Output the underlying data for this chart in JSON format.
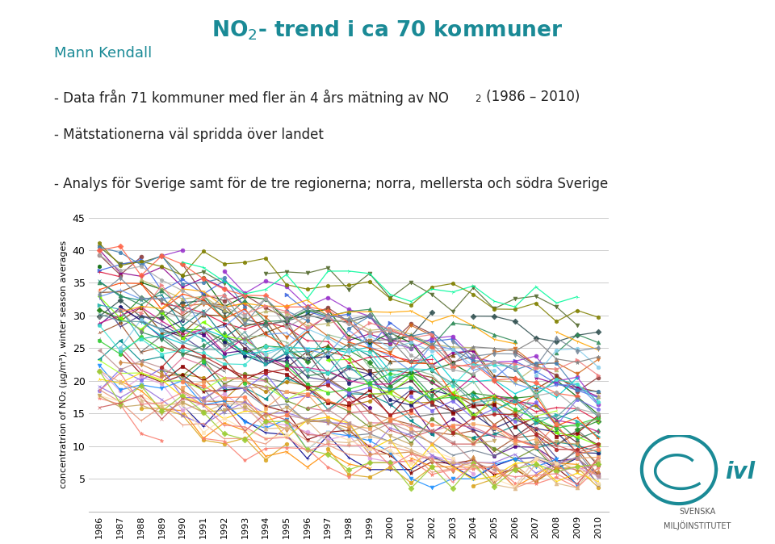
{
  "title_part1": "NO",
  "title_part2": "- trend i ca 70 kommuner",
  "subtitle": "Mann Kendall",
  "bullet1": "- Data från 71 kommuner med fler än 4 års mätning av NO",
  "bullet1_sub": "2",
  "bullet1_end": " (1986 – 2010)",
  "bullet2": "- Mätstationerna väl spridda över landet",
  "bullet3": "- Analys för Sverige samt för de tre regionerna; norra, mellersta och södra Sverige",
  "ylabel": "concentratrion of NO₂ (µg/m³), winter season averages",
  "ylim": [
    0,
    45
  ],
  "yticks": [
    0,
    5,
    10,
    15,
    20,
    25,
    30,
    35,
    40,
    45
  ],
  "years": [
    1986,
    1987,
    1988,
    1989,
    1990,
    1991,
    1992,
    1993,
    1994,
    1995,
    1996,
    1997,
    1998,
    1999,
    2000,
    2001,
    2002,
    2003,
    2004,
    2005,
    2006,
    2007,
    2008,
    2009,
    2010
  ],
  "background_color": "#ffffff",
  "title_color": "#1a8a96",
  "subtitle_color": "#1a8a96",
  "num_series": 71,
  "seed": 42,
  "colors": [
    "#8B3A3A",
    "#5B2333",
    "#7B3F00",
    "#556B2F",
    "#2F4F4F",
    "#4B0082",
    "#8B008B",
    "#006400",
    "#008080",
    "#00008B",
    "#8B4513",
    "#A0522D",
    "#696969",
    "#708090",
    "#B8860B",
    "#6B8E23",
    "#2E8B57",
    "#008B8B",
    "#4169E1",
    "#483D8B",
    "#9932CC",
    "#8B0000",
    "#BDB76B",
    "#D2691E",
    "#228B22",
    "#191970",
    "#800000",
    "#808000",
    "#FF8C00",
    "#DC143C",
    "#00CED1",
    "#C71585",
    "#DB7093",
    "#8FBC8F",
    "#4682B4",
    "#DAA520",
    "#CD853F",
    "#7CFC00",
    "#20B2AA",
    "#6495ED",
    "#DDA0DD",
    "#F4A460",
    "#2E8B57",
    "#1E90FF",
    "#FF6347",
    "#7B68EE",
    "#FA8072",
    "#32CD32",
    "#9370DB",
    "#FF4500",
    "#FFA500",
    "#FFD700",
    "#ADFF2F",
    "#00FA9A",
    "#40E0D0",
    "#87CEEB",
    "#778899",
    "#BC8F8F",
    "#F08080",
    "#E9967A",
    "#FF7F50",
    "#FFE4B5",
    "#DEB887",
    "#C4A460",
    "#9ACD32",
    "#A9A9A9",
    "#808080",
    "#B22222",
    "#CD5C5C",
    "#F08080",
    "#5F9EA0"
  ],
  "markers": [
    "o",
    "s",
    "^",
    "v",
    "D",
    "p",
    "*",
    "h",
    "x",
    "+",
    "1",
    "2",
    "3",
    "4",
    "H",
    "8",
    "d",
    "<",
    ">",
    "|"
  ]
}
